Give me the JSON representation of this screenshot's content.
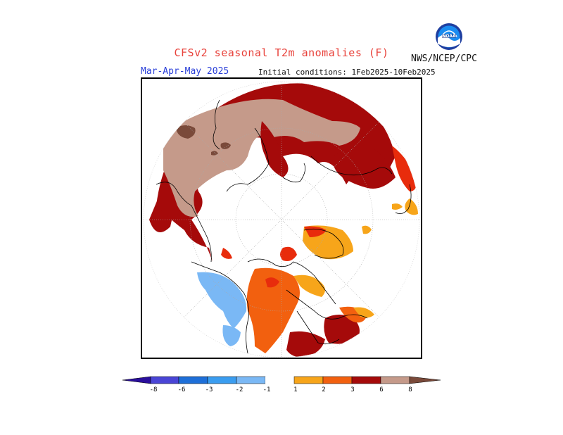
{
  "header": {
    "title": "CFSv2 seasonal T2m anomalies (F)",
    "agency": "NWS/NCEP/CPC",
    "season": "Mar-Apr-May 2025",
    "initial_conditions": "Initial conditions: 1Feb2025-10Feb2025",
    "logo_icon": "noaa-logo-icon"
  },
  "legend": {
    "labels": [
      "-8",
      "-6",
      "-3",
      "-2",
      "-1",
      "1",
      "2",
      "3",
      "6",
      "8"
    ],
    "colors": {
      "below_-8": "#2a0f9c",
      "-8_-6": "#4a45d6",
      "-6_-3": "#1e6fd8",
      "-3_-2": "#3a9df0",
      "-2_-1": "#7ab8f5",
      "-1_1": "#ffffff",
      "1_2": "#f7a51a",
      "2_3": "#f2600f",
      "3_6": "#e82c0c",
      "6_8": "#a50a0a",
      "8_plus": "#c59a8a",
      "above_8": "#7a4a3a"
    }
  },
  "map": {
    "projection": "north-polar-stereographic",
    "colors": {
      "land_outline": "#000000",
      "grid": "#999999",
      "anom_6_8": "#a50a0a",
      "anom_8_plus": "#c59a8a",
      "anom_above_8": "#7a4a3a",
      "anom_3_6": "#e82c0c",
      "anom_2_3": "#f2600f",
      "anom_1_2": "#f7a51a",
      "anom_neg_1_2": "#7ab8f5"
    }
  }
}
